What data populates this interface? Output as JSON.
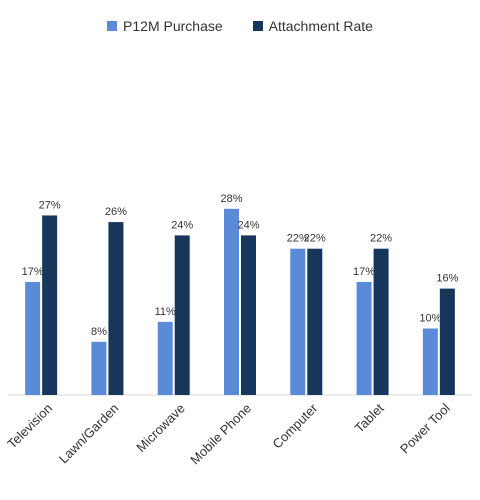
{
  "chart_data": {
    "type": "bar",
    "title": "",
    "xlabel": "",
    "ylabel": "",
    "categories": [
      "Television",
      "Lawn/Garden",
      "Microwave",
      "Mobile Phone",
      "Computer",
      "Tablet",
      "Power Tool"
    ],
    "series": [
      {
        "name": "P12M Purchase",
        "color": "#5b8bd6",
        "values": [
          17,
          8,
          11,
          28,
          22,
          17,
          10
        ]
      },
      {
        "name": "Attachment Rate",
        "color": "#16365c",
        "values": [
          27,
          26,
          24,
          24,
          22,
          22,
          16
        ]
      }
    ],
    "value_suffix": "%",
    "ylim": [
      0,
      30
    ],
    "grid": false,
    "legend_position": "top-center"
  }
}
